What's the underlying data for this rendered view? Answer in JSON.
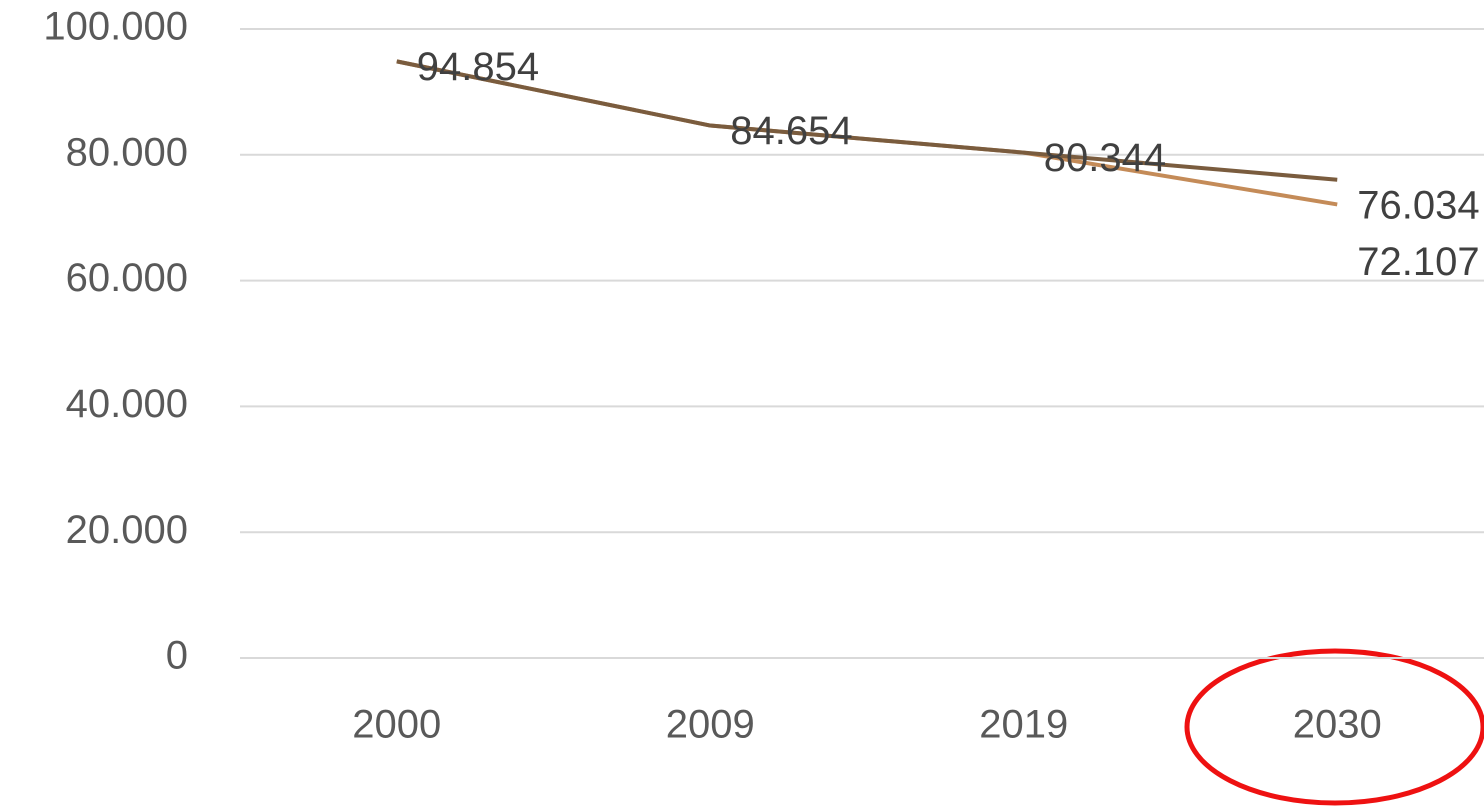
{
  "chart_data": {
    "type": "line",
    "categories": [
      "2000",
      "2009",
      "2019",
      "2030"
    ],
    "series": [
      {
        "color": "#7a5c3e",
        "values": [
          94854,
          84654,
          80344,
          76034
        ],
        "value_labels": [
          "94.854",
          "84.654",
          "80.344",
          "76.034"
        ]
      },
      {
        "color": "#c48b58",
        "values": [
          94854,
          84654,
          80344,
          72107
        ],
        "value_labels": [
          null,
          null,
          null,
          "72.107"
        ]
      }
    ],
    "ylim": [
      0,
      100000
    ],
    "yticks": [
      0,
      {
        "value": 20000,
        "label": "20.000"
      },
      {
        "value": 40000,
        "label": "40.000"
      },
      {
        "value": 60000,
        "label": "60.000"
      },
      {
        "value": 80000,
        "label": "80.000"
      },
      {
        "value": 100000,
        "label": "100.000"
      }
    ],
    "grid": true
  }
}
